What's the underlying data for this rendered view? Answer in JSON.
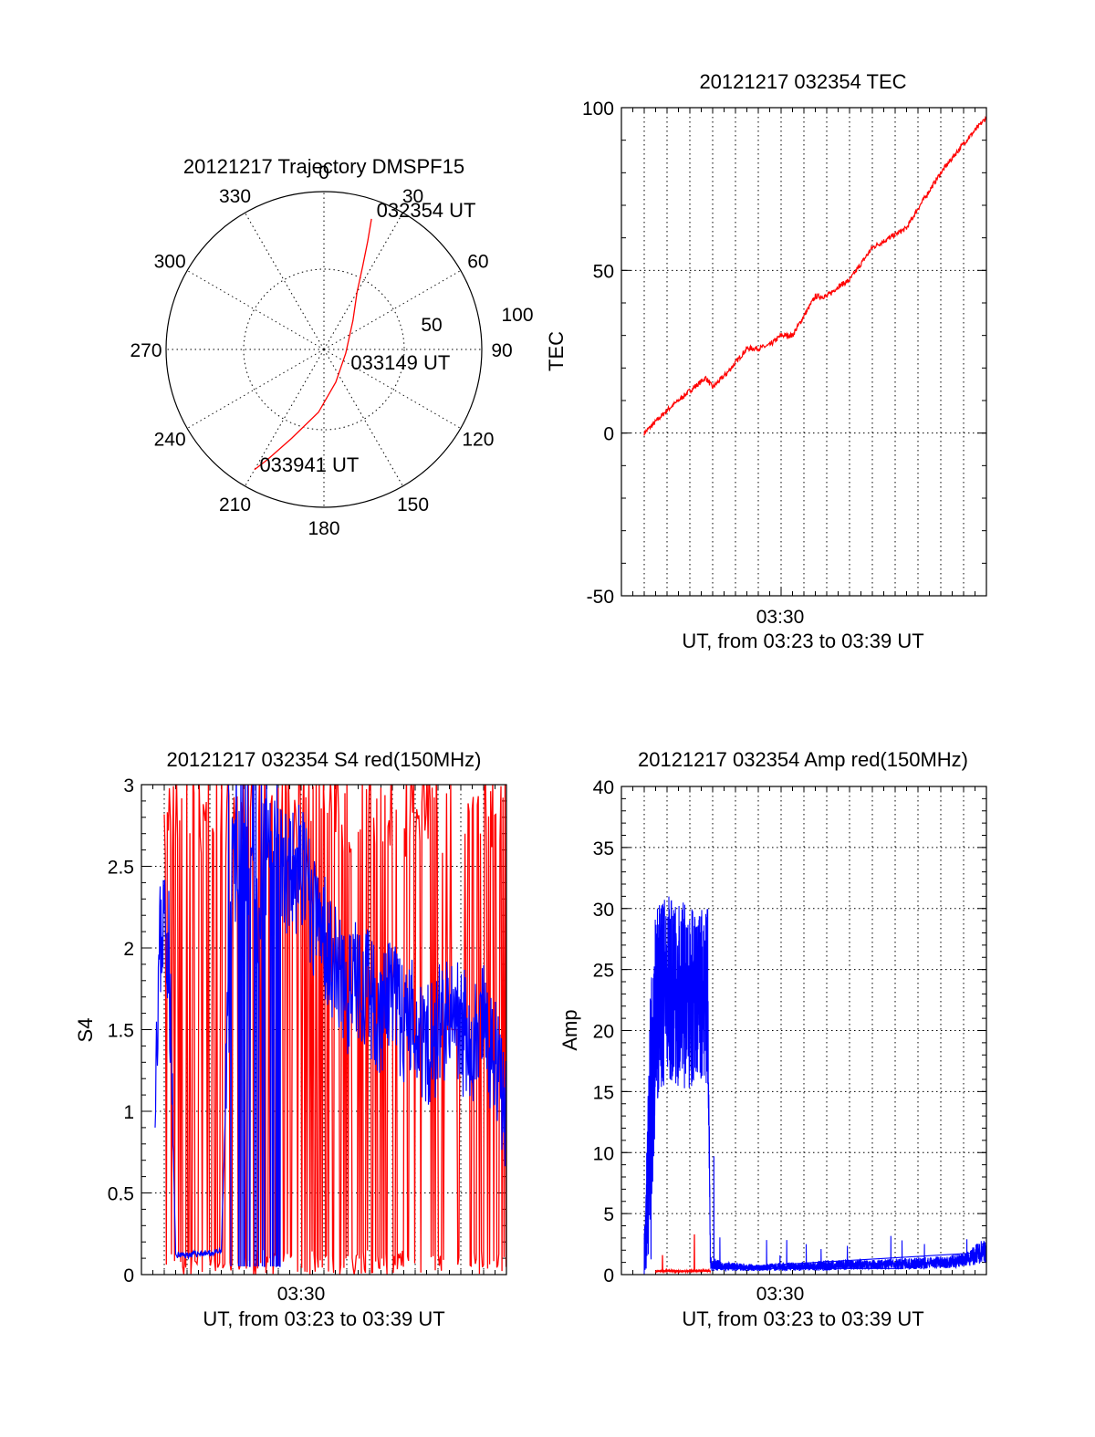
{
  "chart_data": [
    {
      "type": "polar-trajectory",
      "title": "20121217 Trajectory DMSPF15",
      "angle_labels": [
        "0",
        "30",
        "60",
        "90",
        "120",
        "150",
        "180",
        "210",
        "240",
        "270",
        "300",
        "330"
      ],
      "radial_labels": [
        "50",
        "100"
      ],
      "rmax": 100,
      "track": [
        {
          "az": 20,
          "r": 88
        },
        {
          "az": 22,
          "r": 74
        },
        {
          "az": 25,
          "r": 58
        },
        {
          "az": 30,
          "r": 42
        },
        {
          "az": 45,
          "r": 26
        },
        {
          "az": 100,
          "r": 14
        },
        {
          "az": 160,
          "r": 22
        },
        {
          "az": 185,
          "r": 40
        },
        {
          "az": 200,
          "r": 60
        },
        {
          "az": 207,
          "r": 78
        },
        {
          "az": 210,
          "r": 88
        }
      ],
      "annotations": [
        {
          "text": "032354 UT",
          "az": 20,
          "r": 88
        },
        {
          "text": "033149 UT",
          "az": 100,
          "r": 14
        },
        {
          "text": "033941 UT",
          "az": 210,
          "r": 88
        }
      ],
      "color": "#ff0000"
    },
    {
      "type": "line",
      "title": "20121217 032354 TEC",
      "ylabel": "TEC",
      "xlabel": "UT, from 03:23 to 03:39 UT",
      "xtick_label": "03:30",
      "yticks": [
        "-50",
        "0",
        "50",
        "100"
      ],
      "ylim": [
        -50,
        100
      ],
      "xlim": [
        0,
        16
      ],
      "xtick": 7,
      "grid": true,
      "series": [
        {
          "color": "#ff0000",
          "x": [
            1,
            2,
            3,
            3.7,
            4,
            4.7,
            5.5,
            6,
            6.5,
            7,
            7.5,
            8,
            8.5,
            9,
            9.5,
            10,
            11,
            12,
            12.5,
            13,
            14,
            15,
            16
          ],
          "y": [
            0,
            7,
            13,
            17,
            14,
            19,
            26,
            26,
            27,
            30,
            30,
            36,
            42,
            42,
            45,
            47,
            57,
            61,
            63,
            69,
            80,
            89,
            97
          ]
        }
      ]
    },
    {
      "type": "line",
      "title": "20121217 032354 S4 red(150MHz)",
      "ylabel": "S4",
      "xlabel": "UT, from 03:23 to 03:39 UT",
      "xtick_label": "03:30",
      "yticks": [
        "0",
        "0.5",
        "1",
        "1.5",
        "2",
        "2.5",
        "3"
      ],
      "ylim": [
        0,
        3
      ],
      "xlim": [
        0,
        16
      ],
      "xtick": 7,
      "grid": true,
      "series": [
        {
          "name": "red",
          "color": "#ff0000",
          "x_from": 1,
          "x_to": 16,
          "y_min": 0,
          "y_max": 3,
          "mean": 1.5
        },
        {
          "name": "blue",
          "color": "#0000ff",
          "x": [
            0.6,
            0.8,
            1.0,
            1.2,
            1.5,
            2.0,
            2.5,
            3.0,
            3.5,
            4,
            4.5,
            5,
            5.5,
            6,
            6.5,
            7,
            7.5,
            8,
            8.5,
            9,
            9.5,
            10,
            10.5,
            11,
            11.5,
            12,
            12.5,
            13,
            13.5,
            14,
            14.5,
            15,
            15.5,
            16
          ],
          "y": [
            1.3,
            2.0,
            2.2,
            2.0,
            0.12,
            0.12,
            0.13,
            0.13,
            0.14,
            2.5,
            2.4,
            2.2,
            2.6,
            2.5,
            2.4,
            2.5,
            2.2,
            2.1,
            1.9,
            1.7,
            1.8,
            1.7,
            1.6,
            1.7,
            1.5,
            1.6,
            1.4,
            1.5,
            1.6,
            1.5,
            1.4,
            1.5,
            1.3,
            1.0
          ]
        }
      ]
    },
    {
      "type": "line",
      "title": "20121217 032354 Amp red(150MHz)",
      "ylabel": "Amp",
      "xlabel": "UT, from 03:23 to 03:39 UT",
      "xtick_label": "03:30",
      "yticks": [
        "0",
        "5",
        "10",
        "15",
        "20",
        "25",
        "30",
        "35",
        "40"
      ],
      "ylim": [
        0,
        40
      ],
      "xlim": [
        0,
        16
      ],
      "xtick": 7,
      "grid": true,
      "series": [
        {
          "name": "blue",
          "color": "#0000ff",
          "x": [
            1.0,
            1.1,
            1.3,
            1.5,
            2.0,
            2.5,
            3.0,
            3.5,
            3.8,
            3.9,
            4.5,
            5,
            6,
            7,
            8,
            9,
            10,
            11,
            12,
            13,
            14,
            15,
            15.5,
            16
          ],
          "y_low": [
            0,
            0,
            0.5,
            14,
            16,
            15,
            15,
            16,
            15,
            0.3,
            0.3,
            0.3,
            0.3,
            0.3,
            0.3,
            0.3,
            0.4,
            0.4,
            0.4,
            0.4,
            0.5,
            0.6,
            0.8,
            1.0
          ],
          "y_high": [
            3,
            10,
            26,
            30,
            31,
            31,
            30,
            30,
            30,
            1.5,
            1.0,
            1.0,
            0.8,
            1.0,
            1.0,
            1.2,
            1.2,
            1.2,
            1.3,
            1.4,
            1.5,
            1.8,
            2.5,
            3.0
          ]
        },
        {
          "name": "red",
          "color": "#ff0000",
          "x": [
            1.5,
            2.0,
            2.5,
            3.0,
            3.5,
            3.9
          ],
          "y": [
            0.2,
            0.25,
            0.2,
            0.2,
            0.25,
            0.2
          ]
        }
      ]
    }
  ]
}
